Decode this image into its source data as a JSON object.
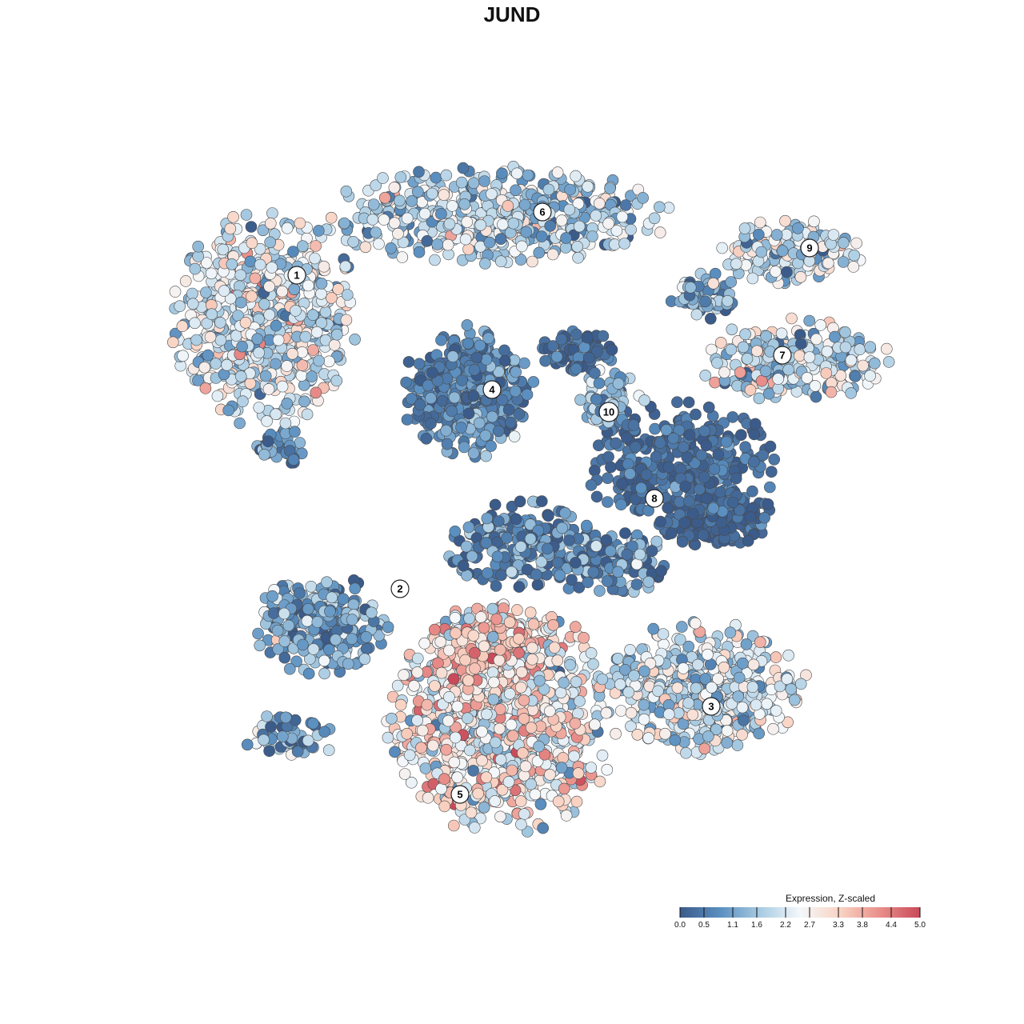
{
  "chart_data": {
    "type": "scatter",
    "title": "JUND",
    "xlabel": "",
    "ylabel": "",
    "grid": false,
    "point_style": "filled circles with dark gray outline",
    "legend": {
      "title": "Expression, Z-scaled",
      "placement": "bottom-right",
      "range": [
        0.0,
        5.0
      ],
      "ticks": [
        "0.0",
        "0.5",
        "1.1",
        "1.6",
        "2.2",
        "2.7",
        "3.3",
        "3.8",
        "4.4",
        "5.0"
      ],
      "colors": [
        "#3b5b8a",
        "#5a8fc0",
        "#a8cbe2",
        "#f4f8fb",
        "#f9d3c3",
        "#e98f8a",
        "#c94a5a"
      ]
    },
    "clusters": [
      {
        "label": "1",
        "mean_expression": 2.2
      },
      {
        "label": "2",
        "mean_expression": 1.1
      },
      {
        "label": "3",
        "mean_expression": 2.0
      },
      {
        "label": "4",
        "mean_expression": 0.7
      },
      {
        "label": "5",
        "mean_expression": 2.6
      },
      {
        "label": "6",
        "mean_expression": 1.8
      },
      {
        "label": "7",
        "mean_expression": 1.9
      },
      {
        "label": "8",
        "mean_expression": 0.3
      },
      {
        "label": "9",
        "mean_expression": 1.9
      },
      {
        "label": "10",
        "mean_expression": 1.2
      }
    ]
  }
}
